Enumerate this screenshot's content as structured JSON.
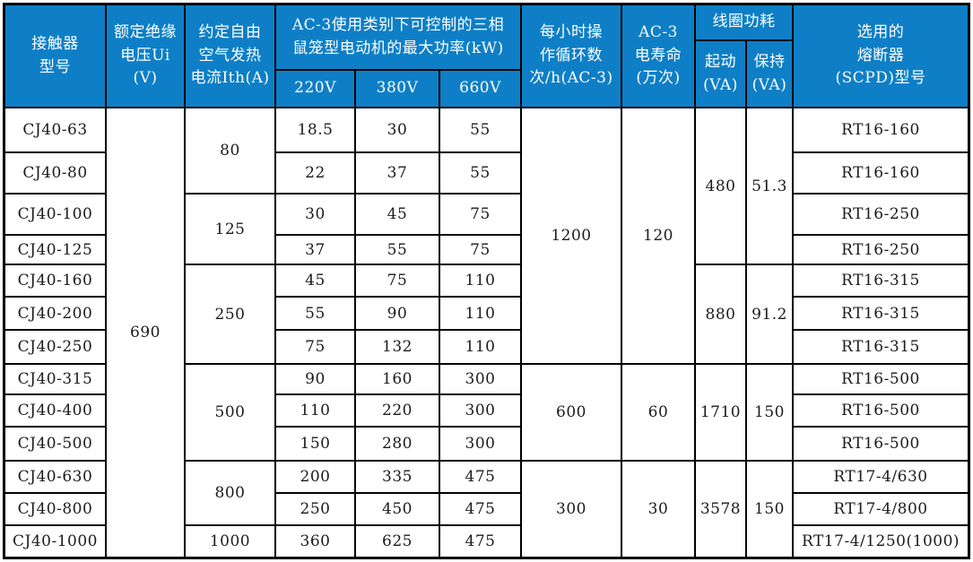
{
  "colors": {
    "header_bg": "#0e7fc6",
    "header_text": "#ffffff",
    "body_bg": "#ffffff",
    "body_text": "#1b1b1b",
    "border": "#000000"
  },
  "header": {
    "contactor_model": "接触器\n型号",
    "rated_insulation_voltage": "额定绝缘\n电压Ui (V)",
    "conventional_thermal_current": "约定自由\n空气发热\n电流Ith(A)",
    "ac3_power_group": "AC-3使用类别下可控制的三相\n鼠笼型电动机的最大功率(kW)",
    "voltage_220": "220V",
    "voltage_380": "380V",
    "voltage_660": "660V",
    "operating_cycles": "每小时操\n作循环数\n次/h(AC-3)",
    "electrical_life": "AC-3\n电寿命\n(万次)",
    "coil_power_group": "线圈功耗",
    "coil_start": "起动\n(VA)",
    "coil_hold": "保持\n(VA)",
    "fuse_type": "选用的\n熔断器\n(SCPD)型号"
  },
  "rows": [
    {
      "model": "CJ40-63",
      "p220": "18.5",
      "p380": "30",
      "p660": "55",
      "fuse": "RT16-160"
    },
    {
      "model": "CJ40-80",
      "p220": "22",
      "p380": "37",
      "p660": "55",
      "fuse": "RT16-160"
    },
    {
      "model": "CJ40-100",
      "p220": "30",
      "p380": "45",
      "p660": "75",
      "fuse": "RT16-250"
    },
    {
      "model": "CJ40-125",
      "p220": "37",
      "p380": "55",
      "p660": "75",
      "fuse": "RT16-250"
    },
    {
      "model": "CJ40-160",
      "p220": "45",
      "p380": "75",
      "p660": "110",
      "fuse": "RT16-315"
    },
    {
      "model": "CJ40-200",
      "p220": "55",
      "p380": "90",
      "p660": "110",
      "fuse": "RT16-315"
    },
    {
      "model": "CJ40-250",
      "p220": "75",
      "p380": "132",
      "p660": "110",
      "fuse": "RT16-315"
    },
    {
      "model": "CJ40-315",
      "p220": "90",
      "p380": "160",
      "p660": "300",
      "fuse": "RT16-500"
    },
    {
      "model": "CJ40-400",
      "p220": "110",
      "p380": "220",
      "p660": "300",
      "fuse": "RT16-500"
    },
    {
      "model": "CJ40-500",
      "p220": "150",
      "p380": "280",
      "p660": "300",
      "fuse": "RT16-500"
    },
    {
      "model": "CJ40-630",
      "p220": "200",
      "p380": "335",
      "p660": "475",
      "fuse": "RT17-4/630"
    },
    {
      "model": "CJ40-800",
      "p220": "250",
      "p380": "450",
      "p660": "475",
      "fuse": "RT17-4/800"
    },
    {
      "model": "CJ40-1000",
      "p220": "360",
      "p380": "625",
      "p660": "475",
      "fuse": "RT17-4/1250(1000)"
    }
  ],
  "merged": {
    "rated_insulation_voltage": "690",
    "thermal_current": [
      "80",
      "125",
      "250",
      "500",
      "800",
      "1000"
    ],
    "cycles_per_hour": [
      "1200",
      "600",
      "300"
    ],
    "electrical_life": [
      "120",
      "60",
      "30"
    ],
    "coil_start": [
      "480",
      "880",
      "1710",
      "3578"
    ],
    "coil_hold": [
      "51.3",
      "91.2",
      "150",
      "150"
    ]
  }
}
